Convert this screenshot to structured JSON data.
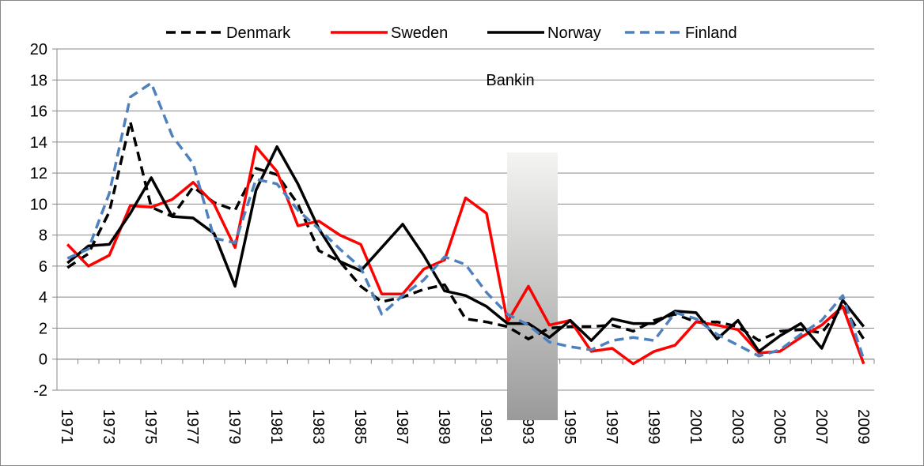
{
  "chart_data": {
    "type": "line",
    "annotation": "Bankin",
    "categories": [
      "1971",
      null,
      "1973",
      null,
      "1975",
      null,
      "1977",
      null,
      "1979",
      null,
      "1981",
      null,
      "1983",
      null,
      "1985",
      null,
      "1987",
      null,
      "1989",
      null,
      "1991",
      null,
      "1993",
      null,
      "1995",
      null,
      "1997",
      null,
      "1999",
      null,
      "2001",
      null,
      "2003",
      null,
      "2005",
      null,
      "2007",
      null,
      "2009"
    ],
    "series": [
      {
        "name": "Denmark",
        "color": "#000000",
        "dashed": true,
        "values": [
          5.9,
          6.8,
          9.5,
          15.3,
          9.8,
          9.2,
          11.1,
          10.1,
          9.6,
          12.3,
          11.9,
          10.0,
          7.0,
          6.3,
          4.7,
          3.7,
          4.0,
          4.5,
          4.8,
          2.6,
          2.4,
          2.1,
          1.3,
          2.0,
          2.1,
          2.1,
          2.2,
          1.8,
          2.5,
          2.9,
          2.4,
          2.4,
          2.1,
          1.2,
          1.8,
          1.9,
          1.7,
          3.4,
          1.3
        ]
      },
      {
        "name": "Sweden",
        "color": "#ff0000",
        "dashed": false,
        "values": [
          7.4,
          6.0,
          6.7,
          9.9,
          9.8,
          10.3,
          11.4,
          10.0,
          7.2,
          13.7,
          12.1,
          8.6,
          8.9,
          8.0,
          7.4,
          4.2,
          4.2,
          5.8,
          6.4,
          10.4,
          9.4,
          2.4,
          4.7,
          2.2,
          2.5,
          0.5,
          0.7,
          -0.3,
          0.5,
          0.9,
          2.4,
          2.2,
          1.9,
          0.4,
          0.5,
          1.4,
          2.2,
          3.4,
          -0.3
        ]
      },
      {
        "name": "Norway",
        "color": "#000000",
        "dashed": false,
        "values": [
          6.2,
          7.3,
          7.4,
          9.4,
          11.7,
          9.2,
          9.1,
          8.1,
          4.7,
          10.9,
          13.7,
          11.3,
          8.4,
          6.3,
          5.7,
          7.2,
          8.7,
          6.7,
          4.4,
          4.1,
          3.4,
          2.3,
          2.3,
          1.4,
          2.5,
          1.2,
          2.6,
          2.3,
          2.3,
          3.1,
          3.0,
          1.3,
          2.5,
          0.5,
          1.5,
          2.3,
          0.7,
          3.8,
          2.1
        ]
      },
      {
        "name": "Finland",
        "color": "#4f81bd",
        "dashed": true,
        "values": [
          6.5,
          7.1,
          10.7,
          16.9,
          17.8,
          14.4,
          12.6,
          7.8,
          7.5,
          11.6,
          11.3,
          9.6,
          8.4,
          7.1,
          5.9,
          2.9,
          4.1,
          5.1,
          6.6,
          6.1,
          4.3,
          2.9,
          2.2,
          1.1,
          0.8,
          0.6,
          1.2,
          1.4,
          1.2,
          3.0,
          2.6,
          1.6,
          0.9,
          0.2,
          0.6,
          1.6,
          2.5,
          4.1,
          0.0
        ]
      }
    ],
    "ylim": [
      -2,
      20
    ],
    "yticks": [
      -2,
      0,
      2,
      4,
      6,
      8,
      10,
      12,
      14,
      16,
      18,
      20
    ],
    "grid": true,
    "legend": "top"
  }
}
